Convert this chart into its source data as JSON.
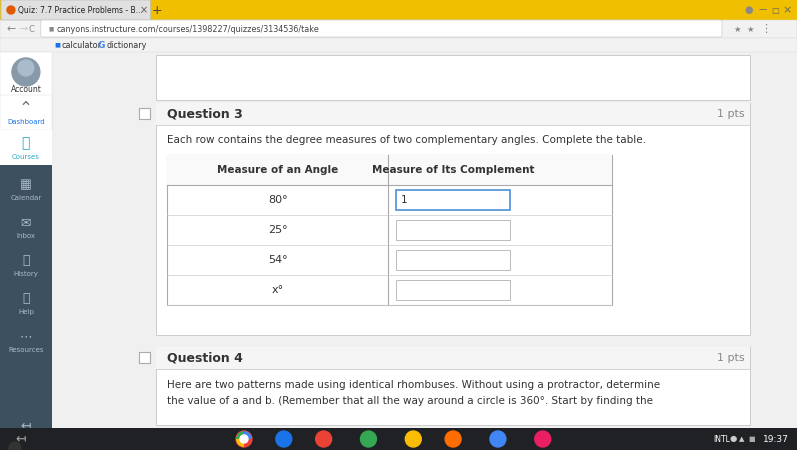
{
  "bg_color": "#e8e8e8",
  "tab_bar_color": "#f0c000",
  "tab_title": "Quiz: 7.7 Practice Problems - B...",
  "url": "canyons.instructure.com/courses/1398227/quizzes/3134536/take",
  "bookmark1": "calculator",
  "bookmark2": "dictionary",
  "sidebar_bg": "#3d505f",
  "sidebar_top_bg": "#ffffff",
  "content_bg": "#f4f4f4",
  "question3_title": "Question 3",
  "question3_pts": "1 pts",
  "question3_instruction": "Each row contains the degree measures of two complementary angles. Complete the table.",
  "table_header1": "Measure of an Angle",
  "table_header2": "Measure of Its Complement",
  "table_rows": [
    "80°",
    "25°",
    "54°",
    "x°"
  ],
  "first_input_text": "1",
  "question4_title": "Question 4",
  "question4_pts": "1 pts",
  "question4_text1": "Here are two patterns made using identical rhombuses. Without using a protractor, determine",
  "question4_text2": "the value of a and b. (Remember that all the way around a circle is 360°. Start by finding the",
  "sidebar_items": [
    "Account",
    "Dashboard",
    "Courses",
    "Calendar",
    "Inbox",
    "History",
    "Help",
    "Resources"
  ],
  "time_text": "19:37",
  "intl_text": "INTL",
  "taskbar_icon_colors": [
    "#ea4335",
    "#1a73e8",
    "#ea4335",
    "#34a853",
    "#fbbc04",
    "#ff6d00",
    "#4285f4",
    "#e91e63"
  ],
  "taskbar_bg": "#202124"
}
